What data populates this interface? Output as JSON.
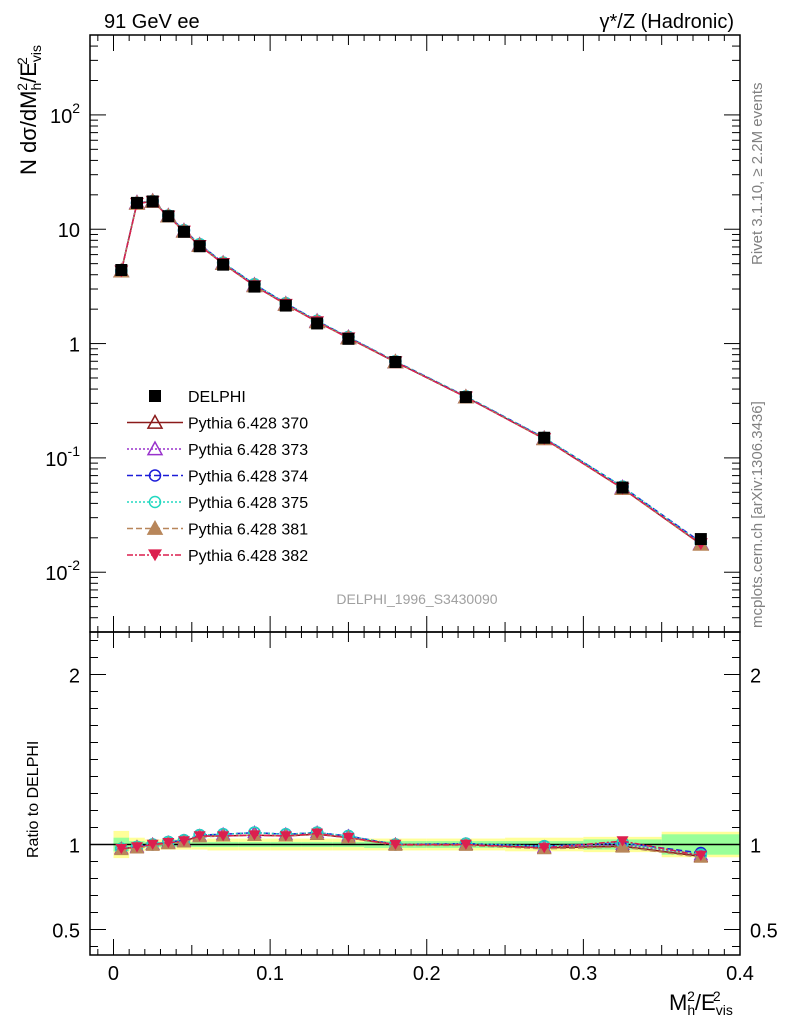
{
  "header": {
    "left": "91 GeV ee",
    "right": "γ*/Z (Hadronic)"
  },
  "side_text": {
    "rivet": "Rivet 3.1.10, ≥ 2.2M events",
    "mcplots": "mcplots.cern.ch [arXiv:1306.3436]"
  },
  "analysis_label": "DELPHI_1996_S3430090",
  "chart_data": [
    {
      "panel": "main",
      "type": "line",
      "yscale": "log",
      "ylabel": "N dσ/dM_h^2/E_vis^2",
      "xlim": [
        -0.015,
        0.4
      ],
      "ylim": [
        0.003,
        500
      ],
      "y_tick_labels": [
        "10^-2",
        "10^-1",
        "1",
        "10",
        "10^2"
      ],
      "x": [
        0.005,
        0.015,
        0.025,
        0.035,
        0.045,
        0.055,
        0.07,
        0.09,
        0.11,
        0.13,
        0.15,
        0.18,
        0.225,
        0.275,
        0.325,
        0.375
      ],
      "reference": {
        "name": "DELPHI",
        "values": [
          4.4,
          17.0,
          17.5,
          13.0,
          9.5,
          7.1,
          4.9,
          3.15,
          2.15,
          1.5,
          1.1,
          0.69,
          0.34,
          0.15,
          0.055,
          0.0195
        ],
        "color": "#000000"
      },
      "series": [
        {
          "name": "Pythia 6.428 370",
          "color": "#8b1a1a",
          "dash": "",
          "marker": "triangle-open",
          "values": [
            4.3,
            17.0,
            17.5,
            13.0,
            9.6,
            7.2,
            5.0,
            3.2,
            2.2,
            1.55,
            1.12,
            0.69,
            0.34,
            0.147,
            0.054,
            0.0176
          ]
        },
        {
          "name": "Pythia 6.428 373",
          "color": "#9932cc",
          "dash": "2,2",
          "marker": "triangle-open",
          "values": [
            4.3,
            17.0,
            17.6,
            13.1,
            9.7,
            7.3,
            5.05,
            3.25,
            2.22,
            1.57,
            1.13,
            0.69,
            0.34,
            0.148,
            0.055,
            0.0178
          ]
        },
        {
          "name": "Pythia 6.428 374",
          "color": "#1c1cd8",
          "dash": "6,3",
          "marker": "circle-open",
          "values": [
            4.3,
            17.0,
            17.6,
            13.2,
            9.8,
            7.4,
            5.1,
            3.3,
            2.25,
            1.58,
            1.14,
            0.7,
            0.345,
            0.15,
            0.056,
            0.0183
          ]
        },
        {
          "name": "Pythia 6.428 375",
          "color": "#22d8c0",
          "dash": "2,2",
          "marker": "circle-open",
          "values": [
            4.3,
            17.0,
            17.6,
            13.2,
            9.8,
            7.4,
            5.1,
            3.3,
            2.25,
            1.58,
            1.14,
            0.7,
            0.345,
            0.15,
            0.056,
            0.018
          ]
        },
        {
          "name": "Pythia 6.428 381",
          "color": "#b8865a",
          "dash": "6,3",
          "marker": "triangle-filled",
          "values": [
            4.3,
            16.8,
            17.5,
            13.0,
            9.6,
            7.2,
            5.0,
            3.2,
            2.2,
            1.55,
            1.12,
            0.69,
            0.34,
            0.147,
            0.054,
            0.0175
          ]
        },
        {
          "name": "Pythia 6.428 382",
          "color": "#dc1f4e",
          "dash": "6,2,2,2",
          "marker": "triangle-down-filled",
          "values": [
            4.3,
            16.8,
            17.5,
            13.0,
            9.6,
            7.2,
            5.0,
            3.2,
            2.2,
            1.55,
            1.12,
            0.69,
            0.34,
            0.147,
            0.054,
            0.0177
          ]
        }
      ]
    },
    {
      "panel": "ratio",
      "type": "line",
      "ylabel": "Ratio to DELPHI",
      "xlabel": "M_h^2/E_vis^2",
      "xlim": [
        -0.015,
        0.4
      ],
      "ylim": [
        0.35,
        2.25
      ],
      "y_tick_labels": [
        "0.5",
        "1",
        "2"
      ],
      "x_tick_labels": [
        "0",
        "0.1",
        "0.2",
        "0.3",
        "0.4"
      ],
      "bins": [
        [
          0.0,
          0.01
        ],
        [
          0.01,
          0.02
        ],
        [
          0.02,
          0.03
        ],
        [
          0.03,
          0.04
        ],
        [
          0.04,
          0.05
        ],
        [
          0.05,
          0.06
        ],
        [
          0.06,
          0.08
        ],
        [
          0.08,
          0.1
        ],
        [
          0.1,
          0.12
        ],
        [
          0.12,
          0.14
        ],
        [
          0.14,
          0.16
        ],
        [
          0.16,
          0.2
        ],
        [
          0.2,
          0.25
        ],
        [
          0.25,
          0.3
        ],
        [
          0.3,
          0.35
        ],
        [
          0.35,
          0.4
        ]
      ],
      "stat_band": [
        0.04,
        0.02,
        0.015,
        0.015,
        0.015,
        0.015,
        0.015,
        0.015,
        0.015,
        0.015,
        0.015,
        0.02,
        0.02,
        0.02,
        0.03,
        0.06
      ],
      "total_band": [
        0.08,
        0.04,
        0.03,
        0.03,
        0.03,
        0.03,
        0.035,
        0.035,
        0.035,
        0.035,
        0.035,
        0.035,
        0.035,
        0.04,
        0.045,
        0.075
      ],
      "series": [
        {
          "name": "Pythia 6.428 370",
          "values": [
            0.975,
            0.985,
            1.0,
            1.01,
            1.02,
            1.05,
            1.05,
            1.055,
            1.05,
            1.06,
            1.04,
            1.0,
            1.0,
            0.98,
            0.99,
            0.93
          ]
        },
        {
          "name": "Pythia 6.428 373",
          "values": [
            0.975,
            0.985,
            1.0,
            1.01,
            1.02,
            1.05,
            1.06,
            1.07,
            1.06,
            1.07,
            1.05,
            1.0,
            1.0,
            0.985,
            1.0,
            0.94
          ]
        },
        {
          "name": "Pythia 6.428 374",
          "values": [
            0.975,
            0.985,
            1.0,
            1.015,
            1.025,
            1.055,
            1.06,
            1.07,
            1.06,
            1.07,
            1.05,
            1.0,
            1.005,
            0.99,
            1.01,
            0.95
          ]
        },
        {
          "name": "Pythia 6.428 375",
          "values": [
            0.975,
            0.985,
            1.0,
            1.015,
            1.025,
            1.055,
            1.06,
            1.07,
            1.06,
            1.07,
            1.05,
            1.0,
            1.005,
            0.99,
            1.01,
            0.94
          ]
        },
        {
          "name": "Pythia 6.428 381",
          "values": [
            0.97,
            0.98,
            0.995,
            1.005,
            1.015,
            1.045,
            1.05,
            1.055,
            1.05,
            1.06,
            1.04,
            0.995,
            0.995,
            0.975,
            0.985,
            0.925
          ]
        },
        {
          "name": "Pythia 6.428 382",
          "values": [
            0.975,
            0.985,
            1.0,
            1.01,
            1.02,
            1.05,
            1.05,
            1.055,
            1.05,
            1.065,
            1.04,
            1.0,
            1.0,
            0.98,
            1.02,
            0.935
          ]
        }
      ]
    }
  ]
}
